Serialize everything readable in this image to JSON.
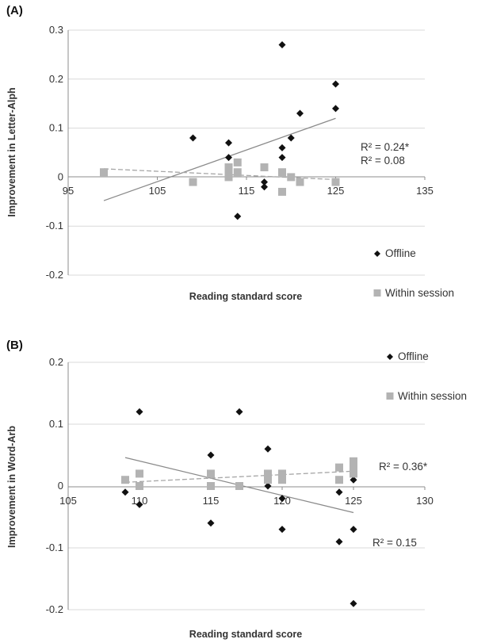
{
  "chart_data": [
    {
      "type": "scatter",
      "panel_label": "(A)",
      "xlabel": "Reading standard score",
      "ylabel": "Improvement in Letter-Alph",
      "xlim": [
        95,
        135
      ],
      "ylim": [
        -0.2,
        0.3
      ],
      "x_ticks": [
        "95",
        "105",
        "115",
        "125",
        "135"
      ],
      "y_ticks": [
        "0.3",
        "0.2",
        "0.1",
        "0",
        "-0.1",
        "-0.2"
      ],
      "grid": true,
      "legend_position": "bottom-right",
      "series": [
        {
          "name": "Offline",
          "marker": "diamond",
          "color": "#111111",
          "x": [
            109,
            113,
            113,
            114,
            117,
            117,
            119,
            119,
            119,
            119,
            120,
            121,
            125,
            125
          ],
          "y": [
            0.08,
            0.07,
            0.04,
            -0.08,
            -0.01,
            -0.02,
            0.27,
            0.06,
            0.04,
            0.01,
            0.08,
            0.13,
            0.19,
            0.14
          ],
          "trendline": {
            "x": [
              99,
              125
            ],
            "y": [
              -0.048,
              0.12
            ]
          },
          "r2_label": "R² = 0.24*"
        },
        {
          "name": "Within session",
          "marker": "square",
          "color": "#b3b3b3",
          "x": [
            99,
            109,
            113,
            113,
            113,
            114,
            114,
            117,
            119,
            119,
            120,
            121,
            125
          ],
          "y": [
            0.01,
            -0.01,
            0.02,
            0.01,
            0.0,
            0.03,
            0.01,
            0.02,
            0.01,
            -0.03,
            0.0,
            -0.01,
            -0.01
          ],
          "trendline": {
            "x": [
              99,
              125
            ],
            "y": [
              0.017,
              -0.005
            ]
          },
          "r2_label": "R² = 0.08"
        }
      ]
    },
    {
      "type": "scatter",
      "panel_label": "(B)",
      "xlabel": "Reading standard score",
      "ylabel": "Improvement in Word-Arb",
      "xlim": [
        105,
        130
      ],
      "ylim": [
        -0.2,
        0.2
      ],
      "x_ticks": [
        "105",
        "110",
        "115",
        "120",
        "125",
        "130"
      ],
      "y_ticks": [
        "0.2",
        "0.1",
        "0",
        "-0.1",
        "-0.2"
      ],
      "grid": true,
      "legend_position": "top-right",
      "series": [
        {
          "name": "Offline",
          "marker": "diamond",
          "color": "#111111",
          "x": [
            109,
            110,
            110,
            115,
            115,
            117,
            119,
            119,
            120,
            120,
            124,
            124,
            125,
            125,
            125
          ],
          "y": [
            -0.01,
            0.12,
            -0.03,
            0.05,
            -0.06,
            0.12,
            0.06,
            0.0,
            -0.02,
            -0.07,
            -0.01,
            -0.09,
            0.01,
            -0.07,
            -0.19
          ],
          "trendline": {
            "x": [
              109,
              125
            ],
            "y": [
              0.046,
              -0.043
            ]
          },
          "r2_label": "R² = 0.15"
        },
        {
          "name": "Within session",
          "marker": "square",
          "color": "#b3b3b3",
          "x": [
            109,
            110,
            110,
            115,
            115,
            117,
            119,
            119,
            119,
            120,
            120,
            124,
            124,
            125,
            125,
            125,
            125
          ],
          "y": [
            0.01,
            0.02,
            0.0,
            0.02,
            0.0,
            0.0,
            0.02,
            0.015,
            0.01,
            0.02,
            0.01,
            0.03,
            0.01,
            0.04,
            0.035,
            0.03,
            0.02
          ],
          "trendline": {
            "x": [
              109,
              125
            ],
            "y": [
              0.006,
              0.024
            ]
          },
          "r2_label": "R² = 0.36*"
        }
      ]
    }
  ]
}
